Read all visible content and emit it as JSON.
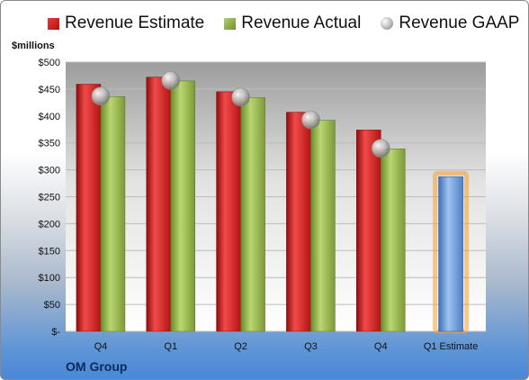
{
  "chart_data": {
    "type": "bar",
    "title": "",
    "ylabel": "$millions",
    "ylim": [
      0,
      500
    ],
    "yticks": [
      "$-",
      "$50",
      "$100",
      "$150",
      "$200",
      "$250",
      "$300",
      "$350",
      "$400",
      "$450",
      "$500"
    ],
    "categories": [
      "Q4",
      "Q1",
      "Q2",
      "Q3",
      "Q4",
      "Q1 Estimate"
    ],
    "series": [
      {
        "name": "Revenue Estimate",
        "values": [
          459,
          472,
          445,
          407,
          374,
          null
        ]
      },
      {
        "name": "Revenue Actual",
        "values": [
          436,
          465,
          434,
          392,
          339,
          null
        ]
      },
      {
        "name": "Revenue GAAP",
        "values": [
          437,
          466,
          435,
          393,
          340,
          null
        ]
      },
      {
        "name": "Q1 Estimate",
        "values": [
          null,
          null,
          null,
          null,
          null,
          287
        ]
      }
    ],
    "legend": "top",
    "grid": true,
    "colors": {
      "estimate": "#d42020",
      "actual": "#8fb04a",
      "gaap": "#b0b0b0",
      "forecast": "#6a9ad6",
      "glow": "#f5a030"
    }
  },
  "company": "OM Group"
}
